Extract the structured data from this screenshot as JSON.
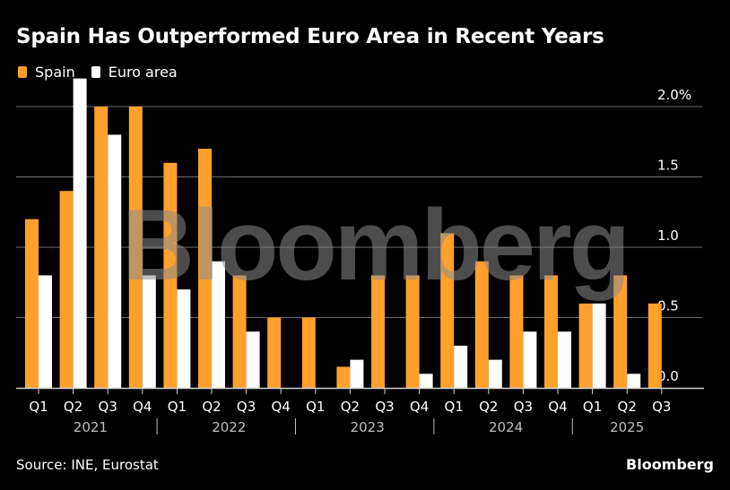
{
  "header": {
    "title": "Spain Has Outperformed Euro Area in Recent Years"
  },
  "footer": {
    "source": "Source: INE, Eurostat",
    "brand": "Bloomberg"
  },
  "watermark": "Bloomberg",
  "colors": {
    "background": "#000000",
    "spain": "#FFA02D",
    "euro_area": "#FFFFFF",
    "gridline": "#6E6E6E",
    "axis_text": "#FFFFFF",
    "year_text": "#BFBFBF"
  },
  "chart_data": {
    "type": "bar",
    "title": "Spain Has Outperformed Euro Area in Recent Years",
    "xlabel": "",
    "ylabel": "",
    "ylim": [
      0,
      2.2
    ],
    "y_ticks": [
      0.0,
      0.5,
      1.0,
      1.5,
      2.0
    ],
    "y_tick_labels": [
      "0.0",
      "0.5",
      "1.0",
      "1.5",
      "2.0%"
    ],
    "y_axis_side": "right",
    "grid": true,
    "legend_position": "top-left",
    "categories": [
      "Q1",
      "Q2",
      "Q3",
      "Q4",
      "Q1",
      "Q2",
      "Q3",
      "Q4",
      "Q1",
      "Q2",
      "Q3",
      "Q4",
      "Q1",
      "Q2",
      "Q3",
      "Q4",
      "Q1",
      "Q2",
      "Q3"
    ],
    "year_groups": [
      {
        "label": "2021",
        "quarters": 4
      },
      {
        "label": "2022",
        "quarters": 4
      },
      {
        "label": "2023",
        "quarters": 4
      },
      {
        "label": "2024",
        "quarters": 4
      },
      {
        "label": "2025",
        "quarters": 3
      }
    ],
    "series": [
      {
        "name": "Spain",
        "color": "#FFA02D",
        "values": [
          1.2,
          1.4,
          2.0,
          2.0,
          1.6,
          1.7,
          0.8,
          0.5,
          0.5,
          0.15,
          0.8,
          0.8,
          1.1,
          0.9,
          0.8,
          0.8,
          0.6,
          0.8,
          0.6
        ]
      },
      {
        "name": "Euro area",
        "color": "#FFFFFF",
        "values": [
          0.8,
          2.2,
          1.8,
          0.8,
          0.7,
          0.9,
          0.4,
          0.0,
          0.0,
          0.2,
          0.0,
          0.1,
          0.3,
          0.2,
          0.4,
          0.4,
          0.6,
          0.1,
          null
        ]
      }
    ]
  }
}
